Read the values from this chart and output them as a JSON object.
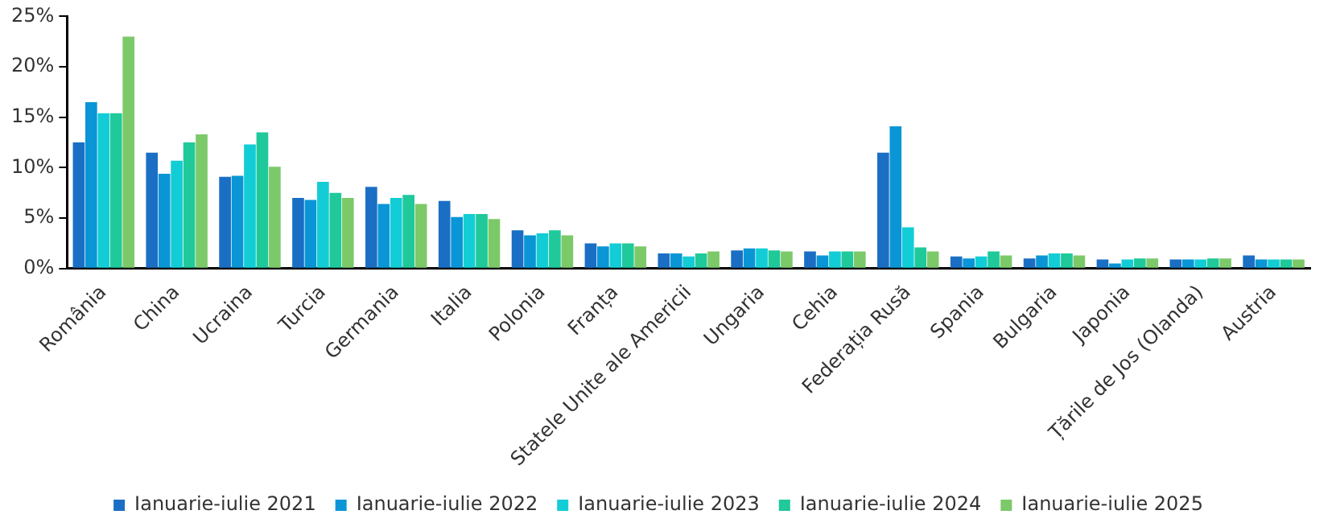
{
  "chart_data": {
    "type": "bar",
    "categories": [
      "România",
      "China",
      "Ucraina",
      "Turcia",
      "Germania",
      "Italia",
      "Polonia",
      "Franța",
      "Statele Unite ale Americii",
      "Ungaria",
      "Cehia",
      "Federația Rusă",
      "Spania",
      "Bulgaria",
      "Japonia",
      "Țările de Jos (Olanda)",
      "Austria"
    ],
    "series": [
      {
        "name": "Ianuarie-iulie 2021",
        "color": "#1a6fc4",
        "values": [
          12.5,
          11.5,
          9.1,
          7.0,
          8.1,
          6.7,
          3.8,
          2.5,
          1.5,
          1.8,
          1.7,
          11.5,
          1.2,
          1.0,
          0.9,
          0.9,
          1.3
        ]
      },
      {
        "name": "Ianuarie-iulie 2022",
        "color": "#0a96d6",
        "values": [
          16.5,
          9.4,
          9.2,
          6.8,
          6.4,
          5.1,
          3.3,
          2.2,
          1.5,
          2.0,
          1.3,
          14.1,
          1.0,
          1.3,
          0.5,
          0.9,
          0.9
        ]
      },
      {
        "name": "Ianuarie-iulie 2023",
        "color": "#13cdd6",
        "values": [
          15.4,
          10.7,
          12.3,
          8.6,
          7.0,
          5.4,
          3.5,
          2.5,
          1.2,
          2.0,
          1.7,
          4.1,
          1.2,
          1.5,
          0.9,
          0.9,
          0.9
        ]
      },
      {
        "name": "Ianuarie-iulie 2024",
        "color": "#1fc99a",
        "values": [
          15.4,
          12.5,
          13.5,
          7.5,
          7.3,
          5.4,
          3.8,
          2.5,
          1.5,
          1.8,
          1.7,
          2.1,
          1.7,
          1.5,
          1.0,
          1.0,
          0.9
        ]
      },
      {
        "name": "Ianuarie-iulie 2025",
        "color": "#7cc96a",
        "values": [
          23.0,
          13.3,
          10.1,
          7.0,
          6.4,
          4.9,
          3.3,
          2.2,
          1.7,
          1.7,
          1.7,
          1.7,
          1.3,
          1.3,
          1.0,
          1.0,
          0.9
        ]
      }
    ],
    "ylim": [
      0,
      25
    ],
    "yticks": [
      {
        "value": 0,
        "label": "0%"
      },
      {
        "value": 5,
        "label": "5%"
      },
      {
        "value": 10,
        "label": "10%"
      },
      {
        "value": 15,
        "label": "15%"
      },
      {
        "value": 20,
        "label": "20%"
      },
      {
        "value": 25,
        "label": "25%"
      }
    ],
    "grid": false,
    "legend": "bottom"
  }
}
